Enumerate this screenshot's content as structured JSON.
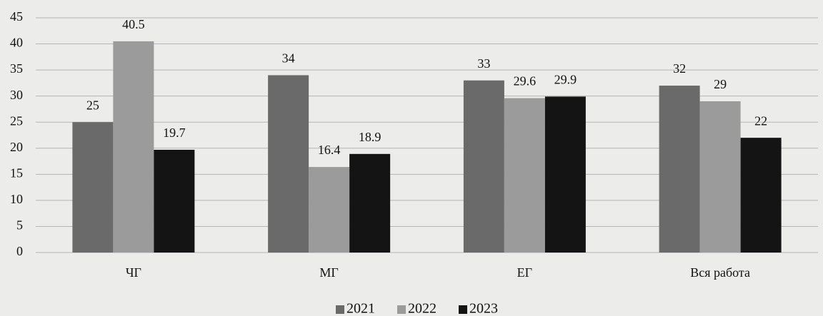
{
  "chart_data": {
    "type": "bar",
    "categories": [
      "ЧГ",
      "МГ",
      "ЕГ",
      "Вся работа"
    ],
    "series": [
      {
        "name": "2021",
        "color": "#6a6a6a",
        "values": [
          25,
          34,
          33,
          32
        ]
      },
      {
        "name": "2022",
        "color": "#9b9b9b",
        "values": [
          40.5,
          16.4,
          29.6,
          29
        ]
      },
      {
        "name": "2023",
        "color": "#141414",
        "values": [
          19.7,
          18.9,
          29.9,
          22
        ]
      }
    ],
    "ylim": [
      0,
      45
    ],
    "yticks": [
      0,
      5,
      10,
      15,
      20,
      25,
      30,
      35,
      40,
      45
    ],
    "grid": true,
    "legend": "bottom"
  }
}
